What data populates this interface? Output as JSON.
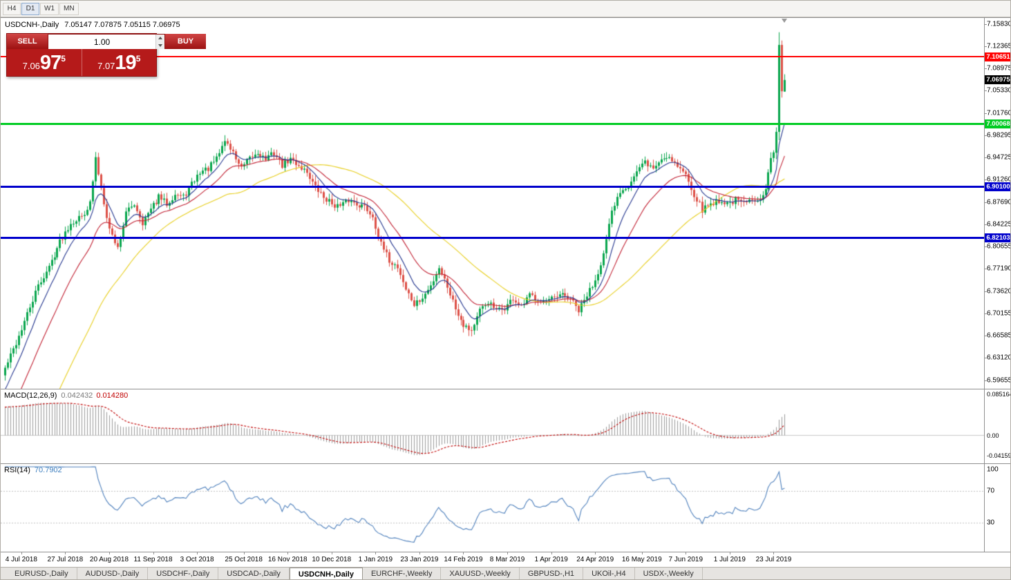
{
  "toolbar": {
    "periods": [
      {
        "label": "H4",
        "active": false
      },
      {
        "label": "D1",
        "active": true
      },
      {
        "label": "W1",
        "active": false
      },
      {
        "label": "MN",
        "active": false
      }
    ]
  },
  "chart": {
    "title": "USDCNH-,Daily",
    "ohlc_text": "7.05147 7.07875 7.05115 7.06975",
    "price_axis": [
      "7.15830",
      "7.12365",
      "7.08975",
      "7.05330",
      "7.01760",
      "6.98295",
      "6.94725",
      "6.91260",
      "6.87690",
      "6.84225",
      "6.80655",
      "6.77190",
      "6.73620",
      "6.70155",
      "6.66585",
      "6.63120",
      "6.59655"
    ],
    "levels": [
      {
        "value": 7.10651,
        "label": "7.10651",
        "color": "#ff0000",
        "width": 2
      },
      {
        "value": 7.00068,
        "label": "7.00068",
        "color": "#00cc22",
        "width": 3
      },
      {
        "value": 6.901,
        "label": "6.90100",
        "color": "#0000cc",
        "width": 3
      },
      {
        "value": 6.82103,
        "label": "6.82103",
        "color": "#0000cc",
        "width": 3
      }
    ],
    "current_price": {
      "value": 7.06975,
      "label": "7.06975",
      "color": "#000000"
    }
  },
  "trade_panel": {
    "sell_label": "SELL",
    "buy_label": "BUY",
    "volume": "1.00",
    "bid": {
      "prefix": "7.06",
      "big": "97",
      "sup": "5"
    },
    "ask": {
      "prefix": "7.07",
      "big": "19",
      "sup": "5"
    }
  },
  "macd": {
    "label": "MACD(12,26,9)",
    "value_main": "0.042432",
    "value_signal": "0.014280",
    "axis": [
      "0.085164",
      "0.00",
      "-0.041597"
    ],
    "max": 0.085164,
    "min": -0.041597
  },
  "rsi": {
    "label": "RSI(14)",
    "value": "70.7902",
    "axis": [
      "100",
      "70",
      "30"
    ],
    "levels": [
      70,
      30
    ]
  },
  "date_axis": [
    "4 Jul 2018",
    "27 Jul 2018",
    "20 Aug 2018",
    "11 Sep 2018",
    "3 Oct 2018",
    "25 Oct 2018",
    "16 Nov 2018",
    "10 Dec 2018",
    "1 Jan 2019",
    "23 Jan 2019",
    "14 Feb 2019",
    "8 Mar 2019",
    "1 Apr 2019",
    "24 Apr 2019",
    "16 May 2019",
    "7 Jun 2019",
    "1 Jul 2019",
    "23 Jul 2019"
  ],
  "tabs": [
    {
      "label": "EURUSD-,Daily",
      "active": false
    },
    {
      "label": "AUDUSD-,Daily",
      "active": false
    },
    {
      "label": "USDCHF-,Daily",
      "active": false
    },
    {
      "label": "USDCAD-,Daily",
      "active": false
    },
    {
      "label": "USDCNH-,Daily",
      "active": true
    },
    {
      "label": "EURCHF-,Weekly",
      "active": false
    },
    {
      "label": "XAUUSD-,Weekly",
      "active": false
    },
    {
      "label": "GBPUSD-,H1",
      "active": false
    },
    {
      "label": "UKOil-,H4",
      "active": false
    },
    {
      "label": "USDX-,Weekly",
      "active": false
    }
  ],
  "colors": {
    "up": "#0aa64e",
    "down": "#dd5148",
    "ma_fast": "#24368f",
    "ma_mid": "#c22133",
    "ma_slow": "#e8cf1e",
    "macd_hist": "#9a9a9a",
    "macd_signal": "#c00000",
    "rsi": "#4f81bd"
  },
  "chart_data": {
    "type": "candlestick",
    "symbol": "USDCNH",
    "timeframe": "Daily",
    "y_range": [
      6.59655,
      7.1583
    ],
    "count": 285,
    "x_start": 6,
    "spacing": 3.973,
    "seed": 42,
    "noise": 0.01,
    "wick": 0.008,
    "pre_bars": 50,
    "pre_start": 6.18,
    "label_indices": [
      6,
      22,
      38,
      54,
      70,
      87,
      103,
      119,
      135,
      151,
      167,
      183,
      199,
      215,
      232,
      248,
      264,
      280
    ],
    "indicators": {
      "macd": [
        12,
        26,
        9
      ],
      "rsi": [
        14
      ],
      "ma_periods": [
        9,
        21,
        50
      ]
    },
    "anchors": [
      [
        0,
        6.615
      ],
      [
        4,
        6.655
      ],
      [
        8,
        6.7
      ],
      [
        12,
        6.745
      ],
      [
        16,
        6.775
      ],
      [
        20,
        6.815
      ],
      [
        24,
        6.845
      ],
      [
        28,
        6.855
      ],
      [
        31,
        6.875
      ],
      [
        33,
        6.945
      ],
      [
        35,
        6.9
      ],
      [
        38,
        6.835
      ],
      [
        41,
        6.805
      ],
      [
        44,
        6.86
      ],
      [
        47,
        6.875
      ],
      [
        50,
        6.845
      ],
      [
        53,
        6.865
      ],
      [
        56,
        6.885
      ],
      [
        59,
        6.875
      ],
      [
        62,
        6.89
      ],
      [
        65,
        6.885
      ],
      [
        68,
        6.905
      ],
      [
        71,
        6.925
      ],
      [
        74,
        6.93
      ],
      [
        77,
        6.945
      ],
      [
        80,
        6.975
      ],
      [
        83,
        6.955
      ],
      [
        86,
        6.93
      ],
      [
        89,
        6.945
      ],
      [
        92,
        6.955
      ],
      [
        95,
        6.945
      ],
      [
        98,
        6.955
      ],
      [
        101,
        6.935
      ],
      [
        104,
        6.945
      ],
      [
        107,
        6.935
      ],
      [
        110,
        6.925
      ],
      [
        113,
        6.9
      ],
      [
        116,
        6.885
      ],
      [
        119,
        6.875
      ],
      [
        122,
        6.87
      ],
      [
        125,
        6.88
      ],
      [
        128,
        6.875
      ],
      [
        131,
        6.87
      ],
      [
        134,
        6.855
      ],
      [
        137,
        6.81
      ],
      [
        140,
        6.785
      ],
      [
        143,
        6.775
      ],
      [
        146,
        6.74
      ],
      [
        149,
        6.715
      ],
      [
        152,
        6.725
      ],
      [
        155,
        6.745
      ],
      [
        158,
        6.775
      ],
      [
        161,
        6.745
      ],
      [
        164,
        6.71
      ],
      [
        167,
        6.685
      ],
      [
        170,
        6.675
      ],
      [
        173,
        6.705
      ],
      [
        176,
        6.72
      ],
      [
        179,
        6.705
      ],
      [
        182,
        6.71
      ],
      [
        185,
        6.725
      ],
      [
        188,
        6.71
      ],
      [
        191,
        6.73
      ],
      [
        194,
        6.725
      ],
      [
        197,
        6.72
      ],
      [
        200,
        6.725
      ],
      [
        203,
        6.73
      ],
      [
        206,
        6.725
      ],
      [
        209,
        6.705
      ],
      [
        212,
        6.73
      ],
      [
        215,
        6.755
      ],
      [
        218,
        6.795
      ],
      [
        221,
        6.86
      ],
      [
        224,
        6.895
      ],
      [
        227,
        6.905
      ],
      [
        230,
        6.925
      ],
      [
        233,
        6.94
      ],
      [
        236,
        6.93
      ],
      [
        239,
        6.945
      ],
      [
        242,
        6.95
      ],
      [
        245,
        6.935
      ],
      [
        248,
        6.92
      ],
      [
        251,
        6.89
      ],
      [
        254,
        6.865
      ],
      [
        257,
        6.875
      ],
      [
        260,
        6.88
      ],
      [
        263,
        6.875
      ],
      [
        266,
        6.88
      ],
      [
        269,
        6.875
      ],
      [
        272,
        6.88
      ],
      [
        275,
        6.885
      ],
      [
        277,
        6.9
      ],
      [
        279,
        6.945
      ],
      [
        280,
        6.955
      ]
    ],
    "last_candles": [
      [
        6.955,
        6.995,
        6.945,
        6.988
      ],
      [
        6.988,
        7.145,
        6.975,
        7.125
      ],
      [
        7.125,
        7.132,
        7.042,
        7.052
      ],
      [
        7.05147,
        7.07875,
        7.05115,
        7.06975
      ]
    ]
  }
}
